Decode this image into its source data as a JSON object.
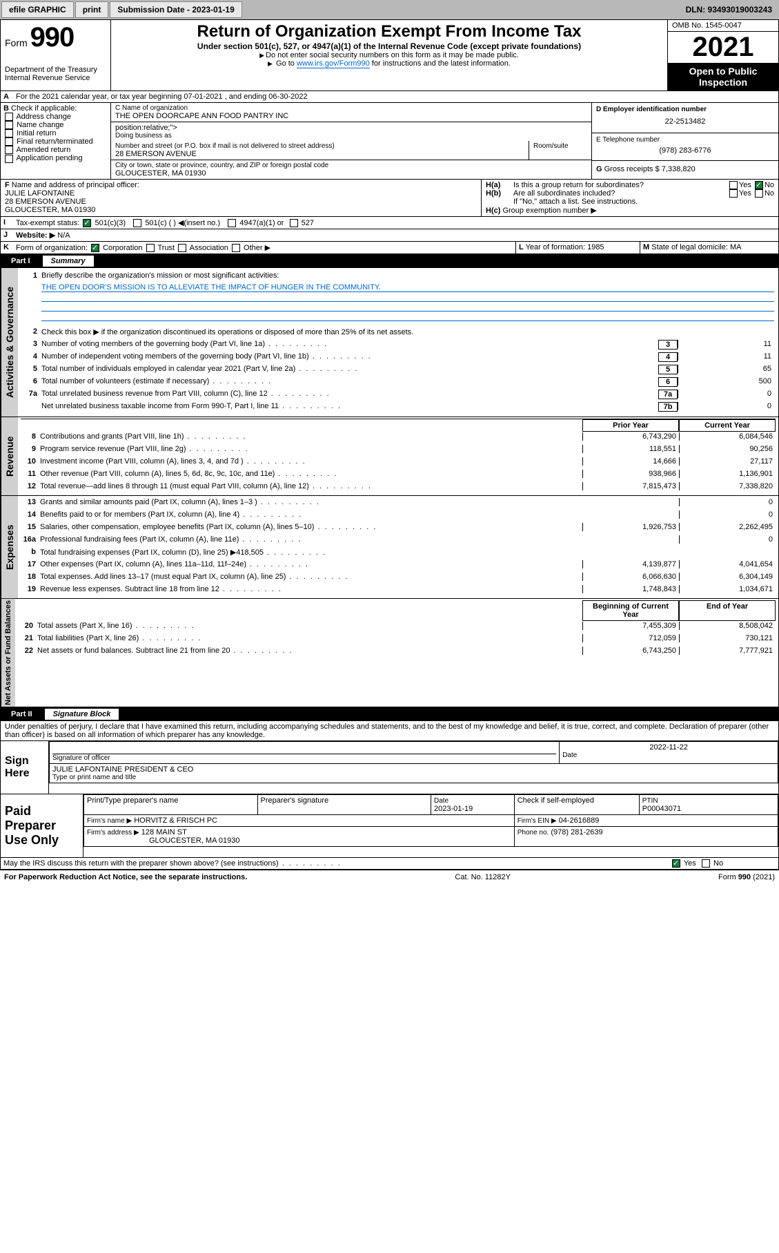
{
  "topbar": {
    "efile": "efile GRAPHIC",
    "print": "print",
    "submission_label": "Submission Date - 2023-01-19",
    "dln": "DLN: 93493019003243"
  },
  "header": {
    "form_label": "Form",
    "form_number": "990",
    "title": "Return of Organization Exempt From Income Tax",
    "subtitle": "Under section 501(c), 527, or 4947(a)(1) of the Internal Revenue Code (except private foundations)",
    "instr1": "Do not enter social security numbers on this form as it may be made public.",
    "instr2_pre": "Go to ",
    "instr2_link": "www.irs.gov/Form990",
    "instr2_post": " for instructions and the latest information.",
    "dept": "Department of the Treasury",
    "irs": "Internal Revenue Service",
    "omb": "OMB No. 1545-0047",
    "year": "2021",
    "open_public": "Open to Public Inspection"
  },
  "lineA": {
    "text": "For the 2021 calendar year, or tax year beginning 07-01-2021   , and ending 06-30-2022",
    "label": "A"
  },
  "boxB": {
    "label": "B",
    "heading": "Check if applicable:",
    "items": [
      "Address change",
      "Name change",
      "Initial return",
      "Final return/terminated",
      "Amended return",
      "Application pending"
    ]
  },
  "boxC": {
    "name_label": "C Name of organization",
    "name": "THE OPEN DOORCAPE ANN FOOD PANTRY INC",
    "dba_label": "Doing business as",
    "dba": "",
    "street_label": "Number and street (or P.O. box if mail is not delivered to street address)",
    "room_label": "Room/suite",
    "street": "28 EMERSON AVENUE",
    "city_label": "City or town, state or province, country, and ZIP or foreign postal code",
    "city": "GLOUCESTER, MA  01930"
  },
  "boxD": {
    "label": "D Employer identification number",
    "value": "22-2513482"
  },
  "boxE": {
    "label": "E Telephone number",
    "value": "(978) 283-6776"
  },
  "boxG": {
    "label": "G",
    "text": "Gross receipts $",
    "value": "7,338,820"
  },
  "boxF": {
    "label": "F",
    "heading": "Name and address of principal officer:",
    "name": "JULIE LAFONTAINE",
    "street": "28 EMERSON AVENUE",
    "city": "GLOUCESTER, MA  01930"
  },
  "boxH": {
    "ha_label": "H(a)",
    "ha_text": "Is this a group return for subordinates?",
    "hb_label": "H(b)",
    "hb_text": "Are all subordinates included?",
    "hb_note": "If \"No,\" attach a list. See instructions.",
    "hc_label": "H(c)",
    "hc_text": "Group exemption number ▶",
    "yes": "Yes",
    "no": "No"
  },
  "lineI": {
    "label": "I",
    "text": "Tax-exempt status:",
    "opts": [
      "501(c)(3)",
      "501(c) (  ) ◀(insert no.)",
      "4947(a)(1) or",
      "527"
    ]
  },
  "lineJ": {
    "label": "J",
    "text": "Website: ▶",
    "value": "N/A"
  },
  "lineK": {
    "label": "K",
    "text": "Form of organization:",
    "opts": [
      "Corporation",
      "Trust",
      "Association",
      "Other ▶"
    ]
  },
  "lineL": {
    "label": "L",
    "text": "Year of formation:",
    "value": "1985"
  },
  "lineM": {
    "label": "M",
    "text": "State of legal domicile:",
    "value": "MA"
  },
  "part1": {
    "part": "Part I",
    "title": "Summary",
    "mission_label": "Briefly describe the organization's mission or most significant activities:",
    "mission": "THE OPEN DOOR'S MISSION IS TO ALLEVIATE THE IMPACT OF HUNGER IN THE COMMUNITY.",
    "line2": "Check this box ▶      if the organization discontinued its operations or disposed of more than 25% of its net assets.",
    "hdr_prior": "Prior Year",
    "hdr_current": "Current Year",
    "hdr_boy": "Beginning of Current Year",
    "hdr_eoy": "End of Year",
    "side_ag": "Activities & Governance",
    "side_rev": "Revenue",
    "side_exp": "Expenses",
    "side_na": "Net Assets or Fund Balances",
    "rows_ag": [
      {
        "n": "3",
        "d": "Number of voting members of the governing body (Part VI, line 1a)",
        "box": "3",
        "v": "11"
      },
      {
        "n": "4",
        "d": "Number of independent voting members of the governing body (Part VI, line 1b)",
        "box": "4",
        "v": "11"
      },
      {
        "n": "5",
        "d": "Total number of individuals employed in calendar year 2021 (Part V, line 2a)",
        "box": "5",
        "v": "65"
      },
      {
        "n": "6",
        "d": "Total number of volunteers (estimate if necessary)",
        "box": "6",
        "v": "500"
      },
      {
        "n": "7a",
        "d": "Total unrelated business revenue from Part VIII, column (C), line 12",
        "box": "7a",
        "v": "0"
      },
      {
        "n": "",
        "d": "Net unrelated business taxable income from Form 990-T, Part I, line 11",
        "box": "7b",
        "v": "0"
      }
    ],
    "rows_rev": [
      {
        "n": "8",
        "d": "Contributions and grants (Part VIII, line 1h)",
        "p": "6,743,290",
        "c": "6,084,546"
      },
      {
        "n": "9",
        "d": "Program service revenue (Part VIII, line 2g)",
        "p": "118,551",
        "c": "90,256"
      },
      {
        "n": "10",
        "d": "Investment income (Part VIII, column (A), lines 3, 4, and 7d )",
        "p": "14,666",
        "c": "27,117"
      },
      {
        "n": "11",
        "d": "Other revenue (Part VIII, column (A), lines 5, 6d, 8c, 9c, 10c, and 11e)",
        "p": "938,966",
        "c": "1,136,901"
      },
      {
        "n": "12",
        "d": "Total revenue—add lines 8 through 11 (must equal Part VIII, column (A), line 12)",
        "p": "7,815,473",
        "c": "7,338,820"
      }
    ],
    "rows_exp": [
      {
        "n": "13",
        "d": "Grants and similar amounts paid (Part IX, column (A), lines 1–3 )",
        "p": "",
        "c": "0"
      },
      {
        "n": "14",
        "d": "Benefits paid to or for members (Part IX, column (A), line 4)",
        "p": "",
        "c": "0"
      },
      {
        "n": "15",
        "d": "Salaries, other compensation, employee benefits (Part IX, column (A), lines 5–10)",
        "p": "1,926,753",
        "c": "2,262,495"
      },
      {
        "n": "16a",
        "d": "Professional fundraising fees (Part IX, column (A), line 11e)",
        "p": "",
        "c": "0"
      },
      {
        "n": "b",
        "d": "Total fundraising expenses (Part IX, column (D), line 25) ▶418,505",
        "p": "GREY",
        "c": "GREY"
      },
      {
        "n": "17",
        "d": "Other expenses (Part IX, column (A), lines 11a–11d, 11f–24e)",
        "p": "4,139,877",
        "c": "4,041,654"
      },
      {
        "n": "18",
        "d": "Total expenses. Add lines 13–17 (must equal Part IX, column (A), line 25)",
        "p": "6,066,630",
        "c": "6,304,149"
      },
      {
        "n": "19",
        "d": "Revenue less expenses. Subtract line 18 from line 12",
        "p": "1,748,843",
        "c": "1,034,671"
      }
    ],
    "rows_na": [
      {
        "n": "20",
        "d": "Total assets (Part X, line 16)",
        "p": "7,455,309",
        "c": "8,508,042"
      },
      {
        "n": "21",
        "d": "Total liabilities (Part X, line 26)",
        "p": "712,059",
        "c": "730,121"
      },
      {
        "n": "22",
        "d": "Net assets or fund balances. Subtract line 21 from line 20",
        "p": "6,743,250",
        "c": "7,777,921"
      }
    ]
  },
  "part2": {
    "part": "Part II",
    "title": "Signature Block",
    "decl": "Under penalties of perjury, I declare that I have examined this return, including accompanying schedules and statements, and to the best of my knowledge and belief, it is true, correct, and complete. Declaration of preparer (other than officer) is based on all information of which preparer has any knowledge.",
    "sign_here": "Sign Here",
    "sig_officer": "Signature of officer",
    "date_label": "Date",
    "date_value": "2022-11-22",
    "officer_name": "JULIE LAFONTAINE  PRESIDENT & CEO",
    "officer_label": "Type or print name and title",
    "paid_prep": "Paid Preparer Use Only",
    "prep_name_label": "Print/Type preparer's name",
    "prep_sig_label": "Preparer's signature",
    "prep_date_label": "Date",
    "prep_date": "2023-01-19",
    "self_emp": "Check      if self-employed",
    "ptin_label": "PTIN",
    "ptin": "P00043071",
    "firm_name_label": "Firm's name    ▶",
    "firm_name": "HORVITZ & FRISCH PC",
    "firm_ein_label": "Firm's EIN ▶",
    "firm_ein": "04-2616889",
    "firm_addr_label": "Firm's address ▶",
    "firm_addr1": "128 MAIN ST",
    "firm_addr2": "GLOUCESTER, MA  01930",
    "firm_phone_label": "Phone no.",
    "firm_phone": "(978) 281-2639",
    "may_irs": "May the IRS discuss this return with the preparer shown above? (see instructions)"
  },
  "footer": {
    "pra": "For Paperwork Reduction Act Notice, see the separate instructions.",
    "cat": "Cat. No. 11282Y",
    "form": "Form 990 (2021)"
  },
  "colors": {
    "link": "#0066cc",
    "check_green": "#1a7a3a",
    "grey_bg": "#d0d0d0",
    "topbar_bg": "#b8b8b8"
  }
}
